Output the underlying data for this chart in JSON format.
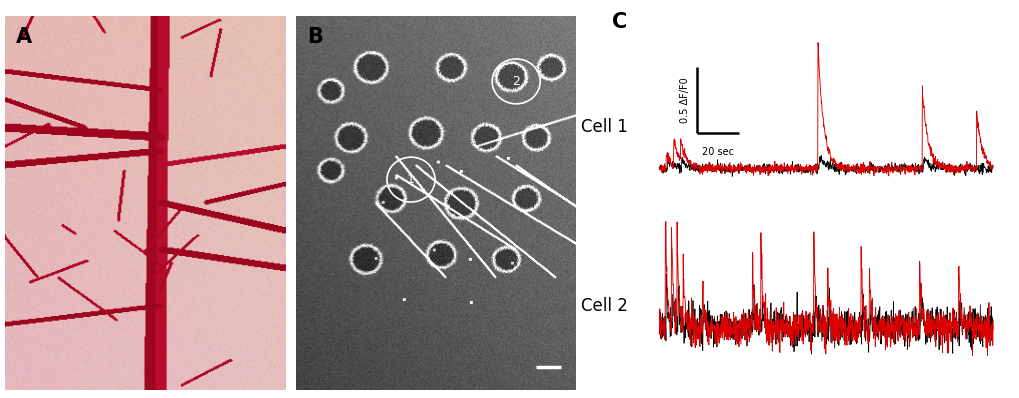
{
  "fig_width": 10.2,
  "fig_height": 3.98,
  "dpi": 100,
  "bg_color": "#ffffff",
  "panel_A_label": "A",
  "panel_B_label": "B",
  "panel_C_label": "C",
  "panel_label_fontsize": 15,
  "panel_label_fontweight": "bold",
  "cell1_label": "Cell 1",
  "cell2_label": "Cell 2",
  "scale_bar_x_label": "20 sec",
  "scale_bar_y_label": "0.5 ΔF/F0",
  "trace_color_black": "#000000",
  "trace_color_red": "#dd0000",
  "n_points": 1200,
  "sampling_rate": 10,
  "noise_std": 0.025,
  "label_fontsize": 12,
  "scalebar_fontsize": 7,
  "panel_A_bg": [
    0.93,
    0.78,
    0.76
  ],
  "panel_B_bg": 0.35,
  "vessel_color": "#c8003a",
  "vessel_color2": "#a00030"
}
